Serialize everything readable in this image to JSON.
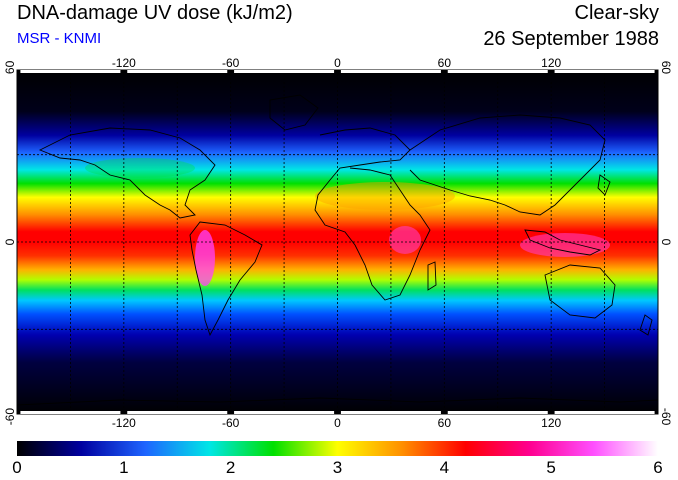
{
  "header": {
    "title": "DNA-damage UV dose (kJ/m2)",
    "subtitle": "MSR - KNMI",
    "condition": "Clear-sky",
    "date": "26 September 1988"
  },
  "map": {
    "longitude_ticks": [
      "-120",
      "-60",
      "0",
      "60",
      "120"
    ],
    "latitude_ticks_left": [
      "60",
      "0",
      "-60"
    ],
    "latitude_ticks_right": [
      "60",
      "0",
      "-60"
    ],
    "graticule_lon": [
      -150,
      -120,
      -90,
      -60,
      -30,
      0,
      30,
      60,
      90,
      120,
      150
    ],
    "graticule_lat": [
      60,
      30,
      0,
      -30,
      -60
    ]
  },
  "colorbar": {
    "min": 0,
    "max": 6,
    "ticks": [
      "0",
      "1",
      "2",
      "3",
      "4",
      "5",
      "6"
    ],
    "colors": [
      "#000000",
      "#0000a0",
      "#1e64ff",
      "#00e6e6",
      "#00e000",
      "#ffff00",
      "#ff9000",
      "#ff0000",
      "#ff0090",
      "#ff50ff",
      "#ffffff"
    ]
  }
}
